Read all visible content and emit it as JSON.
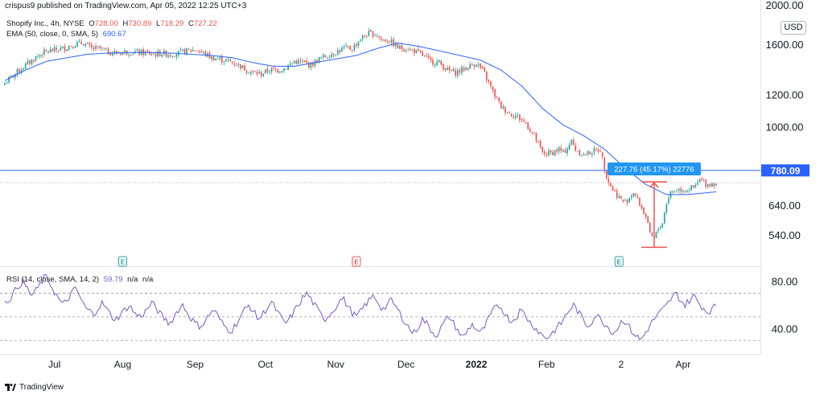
{
  "header": {
    "published": "crispus9 published on TradingView.com, Apr 05, 2022 12:25 UTC+3"
  },
  "legend": {
    "symbol": "Shopify Inc., 4h, NYSE",
    "o_label": "O",
    "o_value": "728.00",
    "h_label": "H",
    "h_value": "730.89",
    "l_label": "L",
    "l_value": "718.29",
    "c_label": "C",
    "c_value": "727.22",
    "ema_label": "EMA (50, close, 0, SMA, 5)",
    "ema_value": "690.67",
    "rsi_label": "RSI (14, close, SMA, 14, 2)",
    "rsi_value": "59.79",
    "rsi_na1": "n/a",
    "rsi_na2": "n/a"
  },
  "currency_button": "USD",
  "footer": {
    "brand": "TradingView"
  },
  "colors": {
    "up": "#26a69a",
    "down": "#ef5350",
    "ema": "#2962ff",
    "rsi": "#7e57c2",
    "hline": "#2962ff",
    "measure": "#ef5350",
    "measure_label_bg": "#2196f3"
  },
  "chart_data": [
    {
      "type": "candlestick",
      "title": "Shopify Inc., 4h, NYSE",
      "scale": "log",
      "ylim": [
        480,
        2000
      ],
      "y_ticks": [
        "2000.00",
        "1600.00",
        "1200.00",
        "1000.00",
        "780.09",
        "640.00",
        "540.00"
      ],
      "price_tick_values": [
        2000,
        1600,
        1200,
        1000,
        640,
        540
      ],
      "x_ticks": [
        "Jul",
        "Aug",
        "Sep",
        "Oct",
        "Nov",
        "Dec",
        "2022",
        "Feb",
        "2",
        "Apr"
      ],
      "horizontal_line": {
        "value": 780.09,
        "label": "780.09"
      },
      "current_price_line": 727.22,
      "measure": {
        "label": "227.76 (45.17%) 22776",
        "from": 504,
        "to": 731
      },
      "earnings_markers": [
        {
          "label": "E",
          "kind": "positive"
        },
        {
          "label": "E",
          "kind": "negative"
        },
        {
          "label": "E",
          "kind": "positive"
        }
      ],
      "close_path": [
        [
          0,
          1280
        ],
        [
          4,
          1340
        ],
        [
          8,
          1390
        ],
        [
          10,
          1420
        ],
        [
          14,
          1470
        ],
        [
          18,
          1520
        ],
        [
          22,
          1540
        ],
        [
          28,
          1560
        ],
        [
          34,
          1600
        ],
        [
          38,
          1610
        ],
        [
          42,
          1560
        ],
        [
          46,
          1560
        ],
        [
          50,
          1530
        ],
        [
          54,
          1520
        ],
        [
          58,
          1530
        ],
        [
          62,
          1530
        ],
        [
          68,
          1520
        ],
        [
          72,
          1510
        ],
        [
          76,
          1520
        ],
        [
          80,
          1510
        ],
        [
          84,
          1520
        ],
        [
          88,
          1540
        ],
        [
          92,
          1550
        ],
        [
          96,
          1520
        ],
        [
          100,
          1480
        ],
        [
          104,
          1470
        ],
        [
          108,
          1450
        ],
        [
          112,
          1430
        ],
        [
          116,
          1390
        ],
        [
          120,
          1360
        ],
        [
          124,
          1350
        ],
        [
          128,
          1380
        ],
        [
          132,
          1380
        ],
        [
          136,
          1400
        ],
        [
          140,
          1450
        ],
        [
          144,
          1440
        ],
        [
          148,
          1420
        ],
        [
          152,
          1470
        ],
        [
          156,
          1500
        ],
        [
          160,
          1530
        ],
        [
          164,
          1560
        ],
        [
          168,
          1560
        ],
        [
          172,
          1650
        ],
        [
          176,
          1700
        ],
        [
          180,
          1690
        ],
        [
          182,
          1640
        ],
        [
          186,
          1630
        ],
        [
          190,
          1570
        ],
        [
          194,
          1560
        ],
        [
          198,
          1540
        ],
        [
          202,
          1500
        ],
        [
          206,
          1450
        ],
        [
          210,
          1440
        ],
        [
          214,
          1380
        ],
        [
          218,
          1360
        ],
        [
          222,
          1390
        ],
        [
          226,
          1420
        ],
        [
          228,
          1440
        ],
        [
          232,
          1350
        ],
        [
          236,
          1220
        ],
        [
          240,
          1120
        ],
        [
          244,
          1080
        ],
        [
          248,
          1060
        ],
        [
          252,
          1020
        ],
        [
          256,
          950
        ],
        [
          260,
          860
        ],
        [
          264,
          860
        ],
        [
          268,
          880
        ],
        [
          270,
          860
        ],
        [
          274,
          920
        ],
        [
          276,
          880
        ],
        [
          280,
          850
        ],
        [
          284,
          870
        ],
        [
          288,
          880
        ],
        [
          290,
          790
        ],
        [
          292,
          730
        ],
        [
          294,
          700
        ],
        [
          298,
          660
        ],
        [
          300,
          650
        ],
        [
          304,
          690
        ],
        [
          308,
          630
        ],
        [
          310,
          600
        ],
        [
          312,
          540
        ],
        [
          314,
          530
        ],
        [
          316,
          560
        ],
        [
          318,
          580
        ],
        [
          320,
          650
        ],
        [
          322,
          690
        ],
        [
          326,
          700
        ],
        [
          330,
          700
        ],
        [
          334,
          710
        ],
        [
          336,
          740
        ],
        [
          340,
          720
        ],
        [
          344,
          727
        ]
      ],
      "ema_path": [
        [
          0,
          1300
        ],
        [
          10,
          1380
        ],
        [
          20,
          1450
        ],
        [
          30,
          1480
        ],
        [
          40,
          1510
        ],
        [
          50,
          1520
        ],
        [
          60,
          1525
        ],
        [
          70,
          1525
        ],
        [
          80,
          1520
        ],
        [
          90,
          1510
        ],
        [
          100,
          1500
        ],
        [
          110,
          1480
        ],
        [
          120,
          1440
        ],
        [
          130,
          1410
        ],
        [
          140,
          1410
        ],
        [
          150,
          1440
        ],
        [
          160,
          1470
        ],
        [
          170,
          1500
        ],
        [
          180,
          1560
        ],
        [
          190,
          1610
        ],
        [
          200,
          1580
        ],
        [
          210,
          1540
        ],
        [
          220,
          1500
        ],
        [
          230,
          1460
        ],
        [
          240,
          1380
        ],
        [
          250,
          1260
        ],
        [
          260,
          1110
        ],
        [
          270,
          1010
        ],
        [
          280,
          950
        ],
        [
          290,
          880
        ],
        [
          300,
          790
        ],
        [
          310,
          720
        ],
        [
          320,
          680
        ],
        [
          330,
          680
        ],
        [
          344,
          690.67
        ]
      ]
    },
    {
      "type": "line",
      "title": "RSI (14, close, SMA, 14, 2)",
      "ylim": [
        20,
        90
      ],
      "y_ticks": [
        "80.00",
        "40.00"
      ],
      "tick_values": [
        80,
        40
      ],
      "bands": [
        70,
        50,
        30
      ],
      "current_value": 59.79,
      "x_ticks": [
        "Jul",
        "Aug",
        "Sep",
        "Oct",
        "Nov",
        "Dec",
        "2022",
        "Feb",
        "2",
        "Apr"
      ],
      "series": [
        62,
        65,
        70,
        76,
        80,
        74,
        68,
        72,
        78,
        84,
        80,
        72,
        66,
        60,
        64,
        70,
        74,
        66,
        58,
        55,
        52,
        58,
        62,
        56,
        50,
        48,
        52,
        56,
        60,
        54,
        50,
        52,
        56,
        62,
        58,
        52,
        48,
        44,
        50,
        56,
        60,
        54,
        48,
        44,
        42,
        46,
        52,
        56,
        50,
        44,
        40,
        38,
        44,
        50,
        56,
        60,
        54,
        48,
        52,
        58,
        62,
        56,
        50,
        44,
        48,
        54,
        60,
        66,
        70,
        64,
        58,
        52,
        48,
        52,
        56,
        62,
        66,
        60,
        54,
        50,
        54,
        60,
        64,
        68,
        62,
        56,
        60,
        64,
        58,
        52,
        46,
        40,
        36,
        42,
        48,
        44,
        38,
        34,
        40,
        46,
        50,
        44,
        38,
        32,
        38,
        44,
        40,
        36,
        42,
        50,
        56,
        60,
        56,
        50,
        46,
        50,
        56,
        52,
        46,
        42,
        38,
        34,
        32,
        36,
        40,
        44,
        50,
        56,
        60,
        54,
        48,
        42,
        46,
        52,
        48,
        44,
        40,
        36,
        42,
        48,
        44,
        38,
        34,
        30,
        36,
        42,
        48,
        52,
        56,
        60,
        66,
        70,
        64,
        60,
        64,
        68,
        62,
        58,
        54,
        56,
        60
      ]
    }
  ]
}
